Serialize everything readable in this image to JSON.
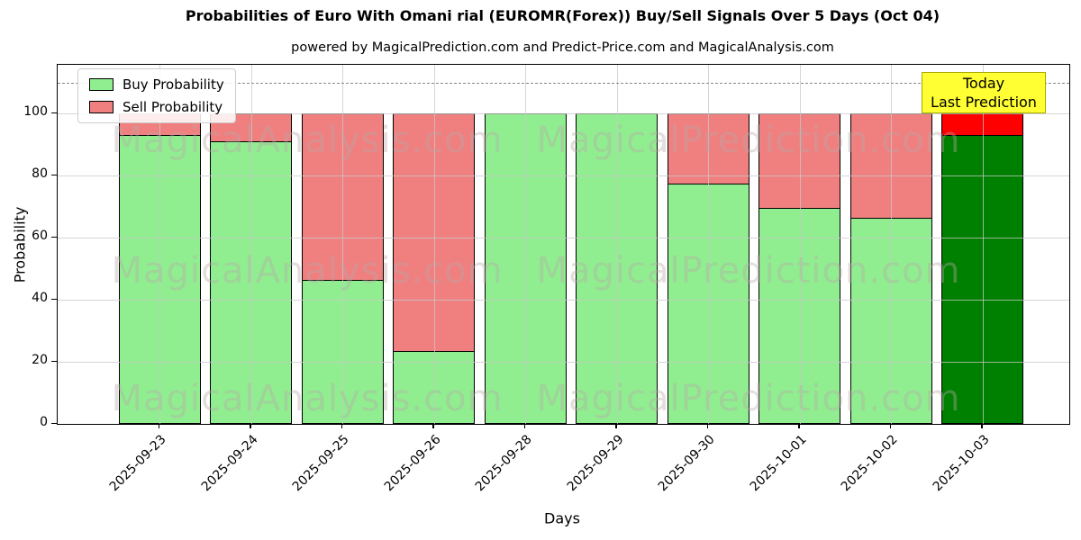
{
  "subtitle": "powered by MagicalPrediction.com and Predict-Price.com and MagicalAnalysis.com",
  "annotation": {
    "line1": "Today",
    "line2": "Last Prediction"
  },
  "watermarks": {
    "left": "MagicalAnalysis.com",
    "right": "MagicalPrediction.com"
  },
  "colors": {
    "buy": "#90EE90",
    "sell": "#F08080",
    "buy_today": "#008000",
    "sell_today": "#FF0000",
    "bar_edge": "#000000",
    "grid": "#C8C8C8",
    "dashed_line": "#888888",
    "annotation_bg": "#FFFF33",
    "annotation_border": "#AAAA00",
    "watermark": "#B9A8A8"
  },
  "chart_data": {
    "type": "bar",
    "stacked": true,
    "title": "Probabilities of Euro With Omani rial (EUROMR(Forex)) Buy/Sell Signals Over 5 Days (Oct 04)",
    "xlabel": "Days",
    "ylabel": "Probability",
    "ylim": [
      0,
      115.5
    ],
    "yticks": [
      0,
      20,
      40,
      60,
      80,
      100
    ],
    "grid": true,
    "legend_position": "upper left",
    "dashed_line_y": 110,
    "categories": [
      "2025-09-23",
      "2025-09-24",
      "2025-09-25",
      "2025-09-26",
      "2025-09-28",
      "2025-09-29",
      "2025-09-30",
      "2025-10-01",
      "2025-10-02",
      "2025-10-03"
    ],
    "series": [
      {
        "name": "Buy Probability",
        "values": [
          93,
          91,
          46.5,
          23.5,
          100,
          100,
          77.5,
          69.5,
          66.5,
          93
        ]
      },
      {
        "name": "Sell Probability",
        "values": [
          7,
          9,
          53.5,
          76.5,
          0,
          0,
          22.5,
          30.5,
          33.5,
          7
        ]
      }
    ],
    "today_index": 9
  }
}
